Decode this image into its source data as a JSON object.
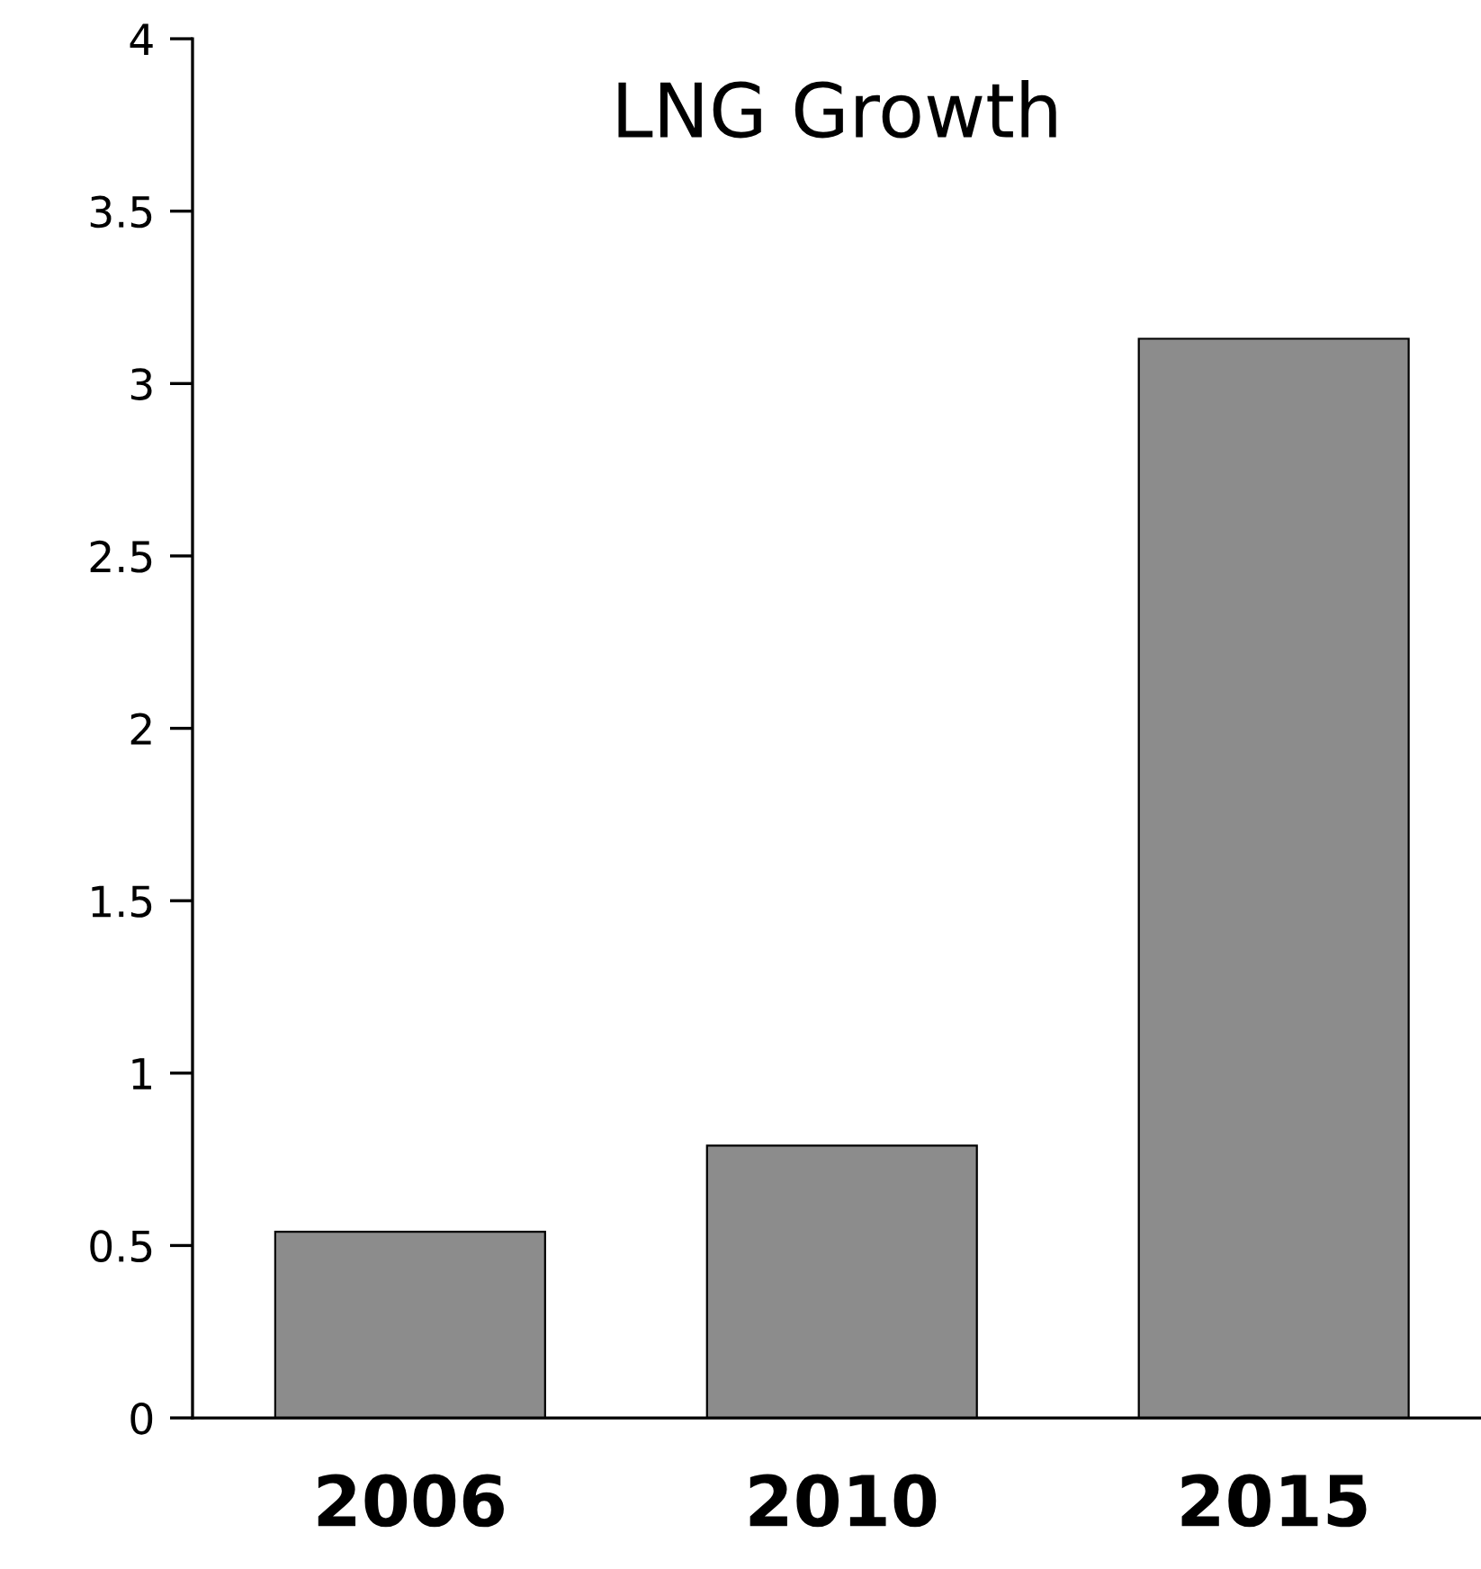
{
  "chart_data": {
    "type": "bar",
    "title": "LNG Growth",
    "categories": [
      "2006",
      "2010",
      "2015"
    ],
    "values": [
      0.54,
      0.79,
      3.13
    ],
    "color": "#8c8c8c",
    "ylim": [
      0,
      4
    ],
    "yticks": [
      0,
      0.5,
      1,
      1.5,
      2,
      2.5,
      3,
      3.5,
      4
    ],
    "grid": false,
    "legend": false
  }
}
